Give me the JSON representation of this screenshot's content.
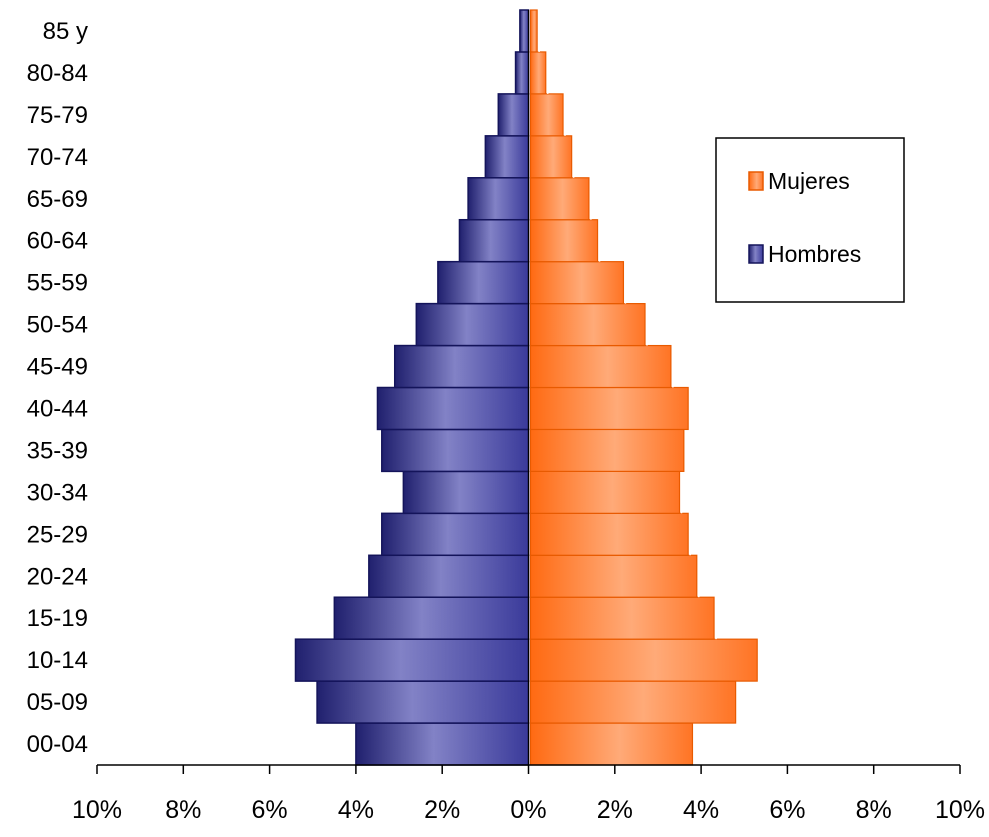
{
  "chart_data": {
    "type": "bar",
    "orientation": "horizontal",
    "categories": [
      "00-04",
      "05-09",
      "10-14",
      "15-19",
      "20-24",
      "25-29",
      "30-34",
      "35-39",
      "40-44",
      "45-49",
      "50-54",
      "55-59",
      "60-64",
      "65-69",
      "70-74",
      "75-79",
      "80-84",
      "85 y"
    ],
    "series": [
      {
        "name": "Mujeres",
        "side": "right",
        "color": "#ff7a2a",
        "values": [
          3.8,
          4.8,
          5.3,
          4.3,
          3.9,
          3.7,
          3.5,
          3.6,
          3.7,
          3.3,
          2.7,
          2.2,
          1.6,
          1.4,
          1.0,
          0.8,
          0.4,
          0.2
        ]
      },
      {
        "name": "Hombres",
        "side": "left",
        "color": "#3d3d9e",
        "values": [
          4.0,
          4.9,
          5.4,
          4.5,
          3.7,
          3.4,
          2.9,
          3.4,
          3.5,
          3.1,
          2.6,
          2.1,
          1.6,
          1.4,
          1.0,
          0.7,
          0.3,
          0.2
        ]
      }
    ],
    "x_ticks": [
      "10%",
      "8%",
      "6%",
      "4%",
      "2%",
      "0%",
      "2%",
      "4%",
      "6%",
      "8%",
      "10%"
    ],
    "xlim": [
      -10,
      10
    ],
    "title": "",
    "xlabel": "",
    "ylabel": "",
    "legend_position": "top-right",
    "grid": false
  }
}
